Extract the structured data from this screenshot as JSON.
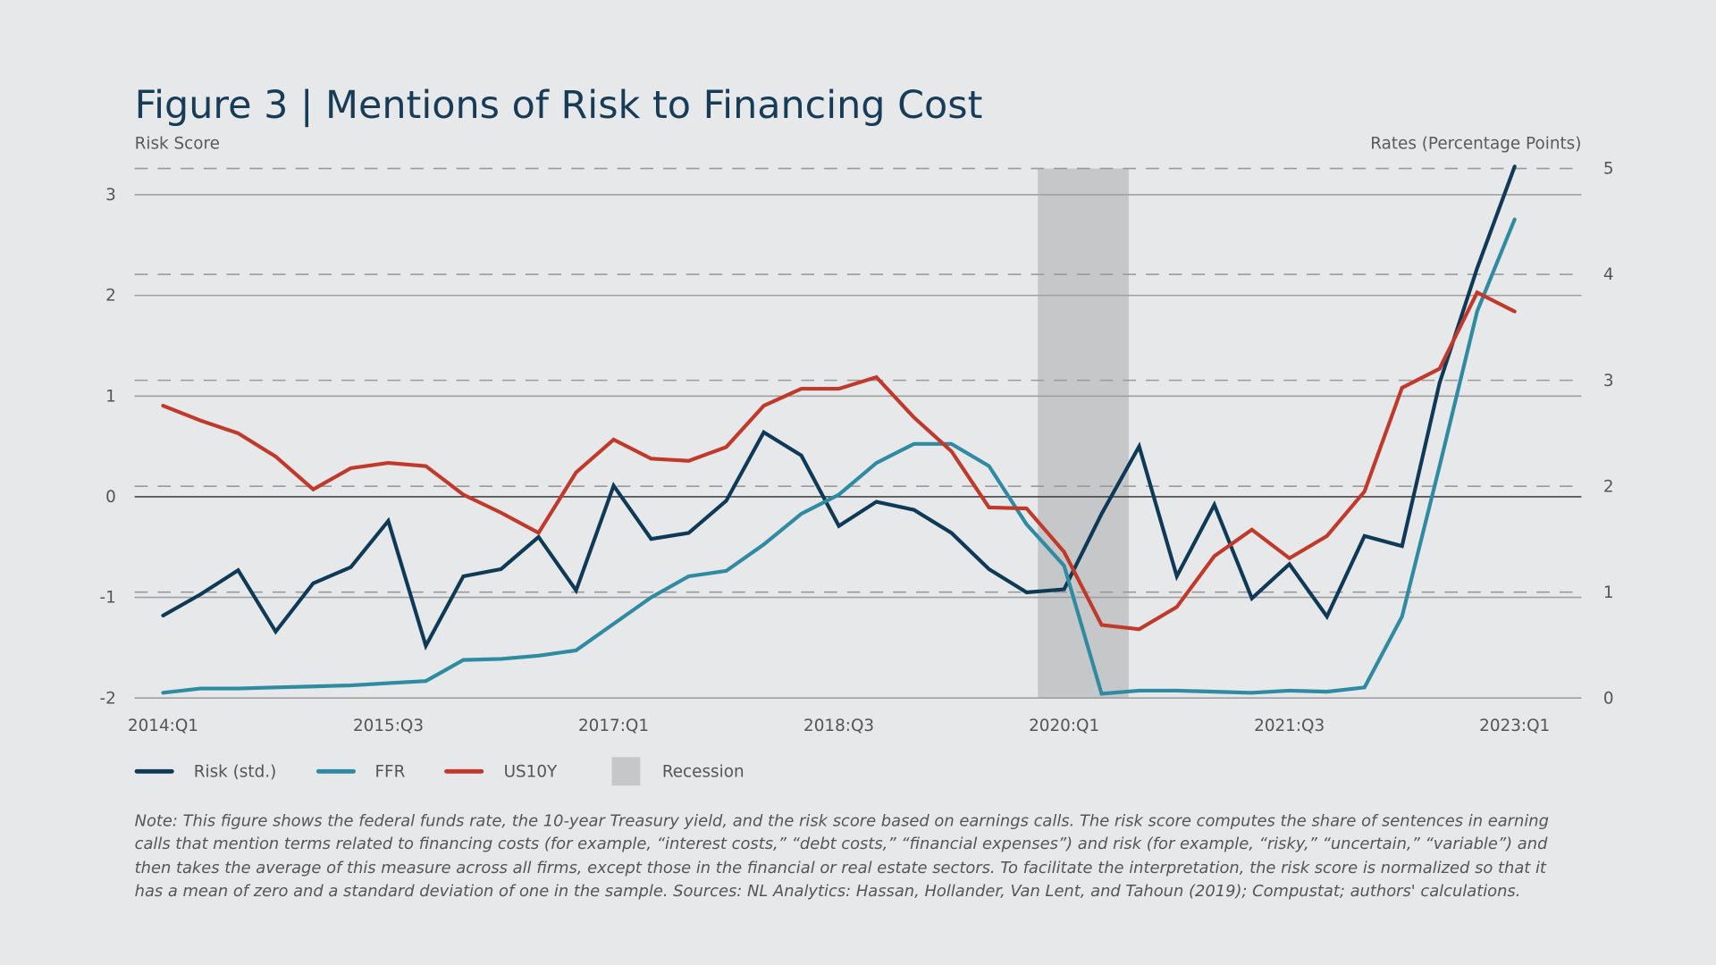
{
  "title": "Figure 3 | Mentions of Risk to Financing Cost",
  "chart_data": {
    "type": "line",
    "title": "Figure 3 | Mentions of Risk to Financing Cost",
    "ylabel_left": "Risk Score",
    "ylabel_right": "Rates (Percentage Points)",
    "ylim_left": [
      -2,
      3.25
    ],
    "ylim_right": [
      0,
      5
    ],
    "yticks_left": [
      "3",
      "2",
      "1",
      "0",
      "-1",
      "-2"
    ],
    "yticks_right": [
      "5",
      "4",
      "3",
      "2",
      "1",
      "0"
    ],
    "xtick_labels": [
      "2014:Q1",
      "2015:Q3",
      "2017:Q1",
      "2018:Q3",
      "2020:Q1",
      "2021:Q3",
      "2023:Q1"
    ],
    "grid": true,
    "legend_position": "bottom-left",
    "x": [
      "2014:Q1",
      "2014:Q2",
      "2014:Q3",
      "2014:Q4",
      "2015:Q1",
      "2015:Q2",
      "2015:Q3",
      "2015:Q4",
      "2016:Q1",
      "2016:Q2",
      "2016:Q3",
      "2016:Q4",
      "2017:Q1",
      "2017:Q2",
      "2017:Q3",
      "2017:Q4",
      "2018:Q1",
      "2018:Q2",
      "2018:Q3",
      "2018:Q4",
      "2019:Q1",
      "2019:Q2",
      "2019:Q3",
      "2019:Q4",
      "2020:Q1",
      "2020:Q2",
      "2020:Q3",
      "2020:Q4",
      "2021:Q1",
      "2021:Q2",
      "2021:Q3",
      "2021:Q4",
      "2022:Q1",
      "2022:Q2",
      "2022:Q3",
      "2022:Q4",
      "2023:Q1"
    ],
    "series": [
      {
        "name": "Risk (std.)",
        "axis": "left",
        "color": "#0e3a57",
        "values": [
          -1.18,
          -0.97,
          -0.73,
          -1.34,
          -0.86,
          -0.7,
          -0.24,
          -1.48,
          -0.79,
          -0.72,
          -0.4,
          -0.93,
          0.11,
          -0.42,
          -0.36,
          -0.04,
          0.64,
          0.41,
          -0.29,
          -0.05,
          -0.13,
          -0.36,
          -0.72,
          -0.95,
          -0.92,
          -0.17,
          0.5,
          -0.79,
          -0.08,
          -1.01,
          -0.67,
          -1.19,
          -0.39,
          -0.49,
          1.13,
          2.27,
          3.28
        ]
      },
      {
        "name": "FFR",
        "axis": "right",
        "color": "#2f8ba2",
        "values": [
          0.05,
          0.09,
          0.09,
          0.1,
          0.11,
          0.12,
          0.14,
          0.16,
          0.36,
          0.37,
          0.4,
          0.45,
          0.7,
          0.95,
          1.15,
          1.2,
          1.45,
          1.74,
          1.92,
          2.22,
          2.4,
          2.4,
          2.19,
          1.64,
          1.25,
          0.04,
          0.07,
          0.07,
          0.06,
          0.05,
          0.07,
          0.06,
          0.1,
          0.77,
          2.19,
          3.65,
          4.52
        ]
      },
      {
        "name": "US10Y",
        "axis": "right",
        "color": "#c0392b",
        "values": [
          2.76,
          2.62,
          2.5,
          2.28,
          1.97,
          2.17,
          2.22,
          2.19,
          1.92,
          1.75,
          1.56,
          2.13,
          2.44,
          2.26,
          2.24,
          2.37,
          2.76,
          2.92,
          2.92,
          3.03,
          2.65,
          2.33,
          1.8,
          1.79,
          1.38,
          0.69,
          0.65,
          0.86,
          1.34,
          1.59,
          1.32,
          1.53,
          1.95,
          2.93,
          3.11,
          3.83,
          3.65
        ]
      }
    ],
    "recession": {
      "name": "Recession",
      "start": "2020:Q1",
      "end": "2020:Q3",
      "color": "#c6c7c9"
    }
  },
  "legend": {
    "risk": "Risk (std.)",
    "ffr": "FFR",
    "us10y": "US10Y",
    "recession": "Recession"
  },
  "note": "Note: This figure shows the federal funds rate, the 10-year Treasury yield, and the risk score based on earnings calls. The risk score computes the share of sentences in earning calls that mention terms related to financing costs (for example, “interest costs,” “debt costs,” “financial expenses”) and risk (for example, “risky,” “uncertain,” “variable”) and then takes the average of this measure across all firms, except those in the financial or real estate sectors. To facilitate the interpretation, the risk score is normalized so that it has a mean of zero and a standard deviation of one in the sample. Sources: NL Analytics: Hassan, Hollander, Van Lent, and Tahoun (2019); Compustat; authors' calculations."
}
